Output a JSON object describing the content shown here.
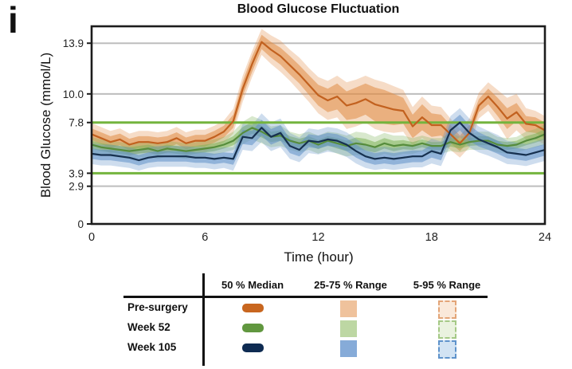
{
  "panel_label": "i",
  "title": "Blood Glucose Fluctuation",
  "axes": {
    "x": {
      "label": "Time (hour)",
      "range": [
        0,
        24
      ],
      "ticks": [
        {
          "v": 0,
          "label": "0"
        },
        {
          "v": 6,
          "label": "6"
        },
        {
          "v": 12,
          "label": "12"
        },
        {
          "v": 18,
          "label": "18"
        },
        {
          "v": 24,
          "label": "24"
        }
      ]
    },
    "y": {
      "label": "Blood Glucose (mmol/L)",
      "range": [
        0,
        15.2
      ],
      "ticks": [
        {
          "v": 0,
          "label": "0"
        },
        {
          "v": 2.9,
          "label": "2.9"
        },
        {
          "v": 3.9,
          "label": "3.9"
        },
        {
          "v": 7.8,
          "label": "7.8"
        },
        {
          "v": 10.0,
          "label": "10.0"
        },
        {
          "v": 13.9,
          "label": "13.9"
        }
      ],
      "gridline_values": [
        2.9,
        10.0,
        13.9
      ],
      "gridline_color": "#bdbdbd",
      "target_line_values": [
        3.9,
        7.8
      ],
      "target_line_color": "#74b43e"
    }
  },
  "chart_data": {
    "type": "line",
    "bands": [
      "25-75 % Range",
      "5-95 % Range"
    ],
    "x_start": 0,
    "x_step": 0.5,
    "series": [
      {
        "name": "Pre-surgery",
        "line_color": "#c2611f",
        "band_color": "#e08c44",
        "median": [
          6.9,
          6.6,
          6.3,
          6.5,
          6.1,
          6.3,
          6.3,
          6.2,
          6.3,
          6.6,
          6.2,
          6.4,
          6.4,
          6.7,
          7.1,
          7.9,
          10.4,
          12.3,
          14.0,
          13.4,
          12.9,
          12.2,
          11.5,
          10.7,
          9.9,
          9.5,
          9.8,
          9.1,
          9.3,
          9.6,
          9.2,
          9.0,
          8.8,
          8.7,
          7.5,
          8.2,
          7.6,
          7.6,
          6.9,
          6.2,
          7.0,
          9.1,
          9.8,
          9.0,
          8.1,
          8.6,
          7.7,
          7.6,
          7.2
        ],
        "iqr_half": [
          0.45,
          0.45,
          0.45,
          0.45,
          0.45,
          0.45,
          0.45,
          0.45,
          0.45,
          0.45,
          0.45,
          0.45,
          0.45,
          0.45,
          0.45,
          0.5,
          0.55,
          0.6,
          0.55,
          0.6,
          0.65,
          0.7,
          0.7,
          0.75,
          0.8,
          0.9,
          1.0,
          1.1,
          1.2,
          1.2,
          1.3,
          1.3,
          1.2,
          1.0,
          0.9,
          1.0,
          0.9,
          0.8,
          0.7,
          0.6,
          0.6,
          0.5,
          0.6,
          0.7,
          0.8,
          0.7,
          0.6,
          0.6,
          0.6
        ],
        "outer_half": [
          0.85,
          0.85,
          0.85,
          0.85,
          0.85,
          0.85,
          0.85,
          0.85,
          0.85,
          0.85,
          0.85,
          0.85,
          0.85,
          0.85,
          0.85,
          0.95,
          1.0,
          1.0,
          1.0,
          1.1,
          1.2,
          1.2,
          1.3,
          1.3,
          1.4,
          1.5,
          1.6,
          1.8,
          1.8,
          1.8,
          1.9,
          1.9,
          1.8,
          1.6,
          1.5,
          1.6,
          1.5,
          1.4,
          1.2,
          1.1,
          1.1,
          1.0,
          1.1,
          1.3,
          1.6,
          1.4,
          1.2,
          1.1,
          1.1
        ]
      },
      {
        "name": "Week 52",
        "line_color": "#568c3c",
        "band_color": "#7fb35a",
        "median": [
          6.1,
          5.9,
          5.8,
          5.7,
          5.6,
          5.7,
          5.8,
          5.6,
          5.8,
          5.7,
          5.6,
          5.7,
          5.8,
          5.9,
          6.1,
          6.4,
          7.0,
          7.4,
          7.1,
          6.7,
          6.8,
          6.4,
          6.2,
          6.4,
          6.1,
          6.4,
          6.2,
          6.0,
          6.2,
          6.1,
          5.9,
          6.2,
          6.0,
          6.1,
          6.0,
          6.2,
          6.0,
          6.0,
          6.3,
          6.1,
          6.3,
          6.4,
          6.4,
          6.1,
          6.0,
          6.1,
          6.4,
          6.6,
          6.9
        ],
        "iqr_half": [
          0.3,
          0.3,
          0.3,
          0.3,
          0.3,
          0.3,
          0.3,
          0.3,
          0.3,
          0.3,
          0.3,
          0.3,
          0.3,
          0.3,
          0.3,
          0.35,
          0.45,
          0.45,
          0.45,
          0.4,
          0.4,
          0.35,
          0.35,
          0.35,
          0.35,
          0.35,
          0.4,
          0.4,
          0.45,
          0.45,
          0.4,
          0.4,
          0.4,
          0.35,
          0.3,
          0.3,
          0.3,
          0.3,
          0.35,
          0.3,
          0.3,
          0.35,
          0.35,
          0.3,
          0.3,
          0.3,
          0.35,
          0.35,
          0.4
        ],
        "outer_half": [
          0.6,
          0.6,
          0.6,
          0.6,
          0.6,
          0.6,
          0.6,
          0.6,
          0.6,
          0.6,
          0.6,
          0.6,
          0.6,
          0.6,
          0.6,
          0.7,
          0.85,
          0.9,
          0.9,
          0.8,
          0.8,
          0.7,
          0.7,
          0.7,
          0.7,
          0.7,
          0.8,
          0.8,
          0.9,
          0.9,
          0.8,
          0.8,
          0.8,
          0.7,
          0.6,
          0.6,
          0.6,
          0.6,
          0.7,
          0.6,
          0.6,
          0.7,
          0.7,
          0.6,
          0.6,
          0.6,
          0.7,
          0.7,
          0.8
        ]
      },
      {
        "name": "Week 105",
        "line_color": "#16304f",
        "band_color": "#5e90c8",
        "median": [
          5.4,
          5.3,
          5.3,
          5.2,
          5.1,
          4.9,
          5.1,
          5.2,
          5.2,
          5.2,
          5.2,
          5.1,
          5.1,
          5.0,
          5.1,
          5.0,
          6.7,
          6.6,
          7.4,
          6.7,
          7.0,
          6.0,
          5.7,
          6.4,
          6.3,
          6.5,
          6.4,
          6.1,
          5.6,
          5.2,
          5.0,
          5.1,
          5.0,
          5.1,
          5.2,
          5.2,
          5.6,
          5.4,
          7.2,
          7.8,
          7.0,
          6.5,
          6.2,
          5.9,
          5.5,
          5.4,
          5.3,
          5.5,
          5.7
        ],
        "iqr_half": [
          0.4,
          0.4,
          0.4,
          0.4,
          0.4,
          0.4,
          0.4,
          0.4,
          0.4,
          0.4,
          0.4,
          0.4,
          0.4,
          0.4,
          0.4,
          0.45,
          0.55,
          0.55,
          0.6,
          0.6,
          0.6,
          0.55,
          0.5,
          0.5,
          0.5,
          0.5,
          0.5,
          0.5,
          0.5,
          0.45,
          0.45,
          0.45,
          0.45,
          0.45,
          0.45,
          0.45,
          0.5,
          0.5,
          0.6,
          0.6,
          0.6,
          0.55,
          0.5,
          0.5,
          0.45,
          0.45,
          0.45,
          0.45,
          0.45
        ],
        "outer_half": [
          0.8,
          0.8,
          0.8,
          0.8,
          0.8,
          0.8,
          0.8,
          0.8,
          0.8,
          0.8,
          0.8,
          0.8,
          0.8,
          0.8,
          0.8,
          0.9,
          1.0,
          1.0,
          1.1,
          1.1,
          1.1,
          1.0,
          0.95,
          0.95,
          0.95,
          0.95,
          0.95,
          0.95,
          0.95,
          0.9,
          0.85,
          0.85,
          0.85,
          0.85,
          0.85,
          0.85,
          0.95,
          0.95,
          1.1,
          1.1,
          1.1,
          1.0,
          0.95,
          0.95,
          0.9,
          0.85,
          0.85,
          0.85,
          0.85
        ]
      }
    ]
  },
  "legend": {
    "columns": [
      "50 % Median",
      "25-75 % Range",
      "5-95 % Range"
    ],
    "rows": [
      {
        "label": "Pre-surgery",
        "median_color": "#c8661f",
        "iqr_color": "#efc29c",
        "outer_fill": "#fae9da",
        "outer_border": "#e3a578"
      },
      {
        "label": "Week 52",
        "median_color": "#61973f",
        "iqr_color": "#bdd7a3",
        "outer_fill": "#eaf2df",
        "outer_border": "#a5c986"
      },
      {
        "label": "Week 105",
        "median_color": "#0e2b52",
        "iqr_color": "#86abd8",
        "outer_fill": "#d2e3f3",
        "outer_border": "#5f93cb"
      }
    ]
  }
}
